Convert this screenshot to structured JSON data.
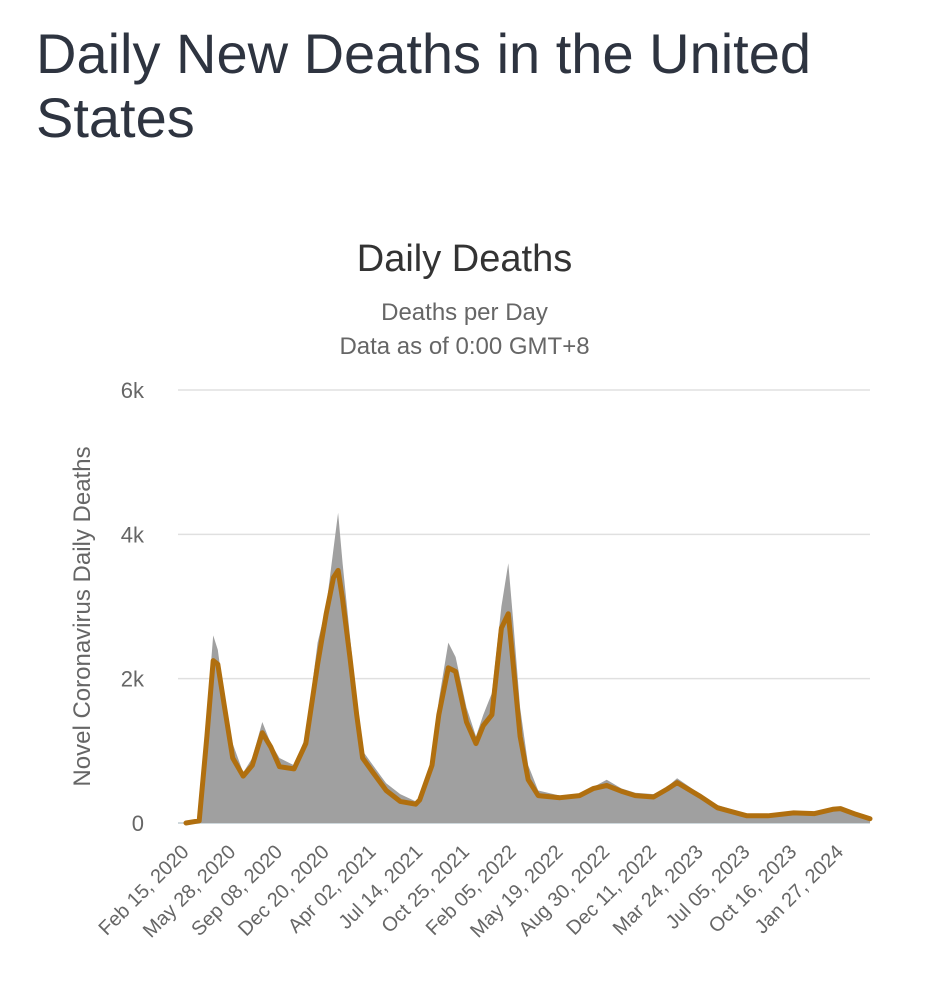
{
  "page": {
    "title": "Daily New Deaths in the United States"
  },
  "chart_data": {
    "type": "bar",
    "title": "Daily Deaths",
    "subtitle": "Deaths per Day",
    "subtitle2": "Data as of 0:00 GMT+8",
    "ylabel": "Novel Coronavirus Daily Deaths",
    "xlabel": "",
    "ylim": [
      0,
      6000
    ],
    "y_ticks": [
      {
        "value": 0,
        "label": "0"
      },
      {
        "value": 2000,
        "label": "2k"
      },
      {
        "value": 4000,
        "label": "4k"
      },
      {
        "value": 6000,
        "label": "6k"
      }
    ],
    "x_tick_labels": [
      "Feb 15, 2020",
      "May 28, 2020",
      "Sep 08, 2020",
      "Dec 20, 2020",
      "Apr 02, 2021",
      "Jul 14, 2021",
      "Oct 25, 2021",
      "Feb 05, 2022",
      "May 19, 2022",
      "Aug 30, 2022",
      "Dec 11, 2022",
      "Mar 24, 2023",
      "Jul 05, 2023",
      "Oct 16, 2023",
      "Jan 27, 2024"
    ],
    "grid": true,
    "colors": {
      "bars": "#a0a0a0",
      "moving_average": "#b06f0f",
      "grid": "#e0e0e0",
      "text": "#666666",
      "title": "#333333"
    },
    "series": [
      {
        "type": "bar",
        "x": [
          "Feb 15, 2020",
          "Mar 15, 2020",
          "Apr 01, 2020",
          "Apr 15, 2020",
          "Apr 25, 2020",
          "May 10, 2020",
          "May 28, 2020",
          "Jun 20, 2020",
          "Jul 10, 2020",
          "Aug 01, 2020",
          "Aug 20, 2020",
          "Sep 08, 2020",
          "Oct 10, 2020",
          "Nov 05, 2020",
          "Dec 01, 2020",
          "Dec 20, 2020",
          "Jan 05, 2021",
          "Jan 15, 2021",
          "Jan 25, 2021",
          "Feb 10, 2021",
          "Feb 25, 2021",
          "Mar 10, 2021",
          "Apr 02, 2021",
          "May 01, 2021",
          "Jun 01, 2021",
          "Jul 05, 2021",
          "Jul 14, 2021",
          "Aug 10, 2021",
          "Aug 25, 2021",
          "Sep 15, 2021",
          "Oct 01, 2021",
          "Oct 25, 2021",
          "Nov 15, 2021",
          "Dec 01, 2021",
          "Dec 20, 2021",
          "Jan 10, 2022",
          "Jan 25, 2022",
          "Feb 05, 2022",
          "Feb 20, 2022",
          "Mar 10, 2022",
          "Apr 01, 2022",
          "May 19, 2022",
          "Jul 01, 2022",
          "Aug 01, 2022",
          "Aug 30, 2022",
          "Oct 01, 2022",
          "Nov 01, 2022",
          "Dec 11, 2022",
          "Jan 10, 2023",
          "Feb 01, 2023",
          "Mar 24, 2023",
          "May 01, 2023",
          "Jul 05, 2023",
          "Aug 20, 2023",
          "Oct 16, 2023",
          "Dec 01, 2023",
          "Jan 10, 2024",
          "Jan 27, 2024",
          "Mar 01, 2024",
          "Apr 01, 2024"
        ],
        "values": [
          0,
          50,
          1500,
          2600,
          2400,
          1700,
          1100,
          700,
          900,
          1400,
          1100,
          900,
          800,
          1200,
          2500,
          3000,
          3800,
          4300,
          3600,
          2600,
          1700,
          1000,
          800,
          550,
          400,
          300,
          350,
          900,
          1700,
          2500,
          2300,
          1600,
          1200,
          1500,
          1800,
          3000,
          3600,
          2800,
          1600,
          800,
          450,
          380,
          400,
          500,
          600,
          480,
          420,
          400,
          500,
          620,
          400,
          250,
          120,
          110,
          160,
          140,
          220,
          230,
          150,
          90
        ]
      },
      {
        "type": "line",
        "x": [
          "Feb 15, 2020",
          "Mar 15, 2020",
          "Apr 01, 2020",
          "Apr 15, 2020",
          "Apr 25, 2020",
          "May 10, 2020",
          "May 28, 2020",
          "Jun 20, 2020",
          "Jul 10, 2020",
          "Aug 01, 2020",
          "Aug 20, 2020",
          "Sep 08, 2020",
          "Oct 10, 2020",
          "Nov 05, 2020",
          "Dec 01, 2020",
          "Dec 20, 2020",
          "Jan 05, 2021",
          "Jan 15, 2021",
          "Jan 25, 2021",
          "Feb 10, 2021",
          "Feb 25, 2021",
          "Mar 10, 2021",
          "Apr 02, 2021",
          "May 01, 2021",
          "Jun 01, 2021",
          "Jul 05, 2021",
          "Jul 14, 2021",
          "Aug 10, 2021",
          "Aug 25, 2021",
          "Sep 15, 2021",
          "Oct 01, 2021",
          "Oct 25, 2021",
          "Nov 15, 2021",
          "Dec 01, 2021",
          "Dec 20, 2021",
          "Jan 10, 2022",
          "Jan 25, 2022",
          "Feb 05, 2022",
          "Feb 20, 2022",
          "Mar 10, 2022",
          "Apr 01, 2022",
          "May 19, 2022",
          "Jul 01, 2022",
          "Aug 01, 2022",
          "Aug 30, 2022",
          "Oct 01, 2022",
          "Nov 01, 2022",
          "Dec 11, 2022",
          "Jan 10, 2023",
          "Feb 01, 2023",
          "Mar 24, 2023",
          "May 01, 2023",
          "Jul 05, 2023",
          "Aug 20, 2023",
          "Oct 16, 2023",
          "Dec 01, 2023",
          "Jan 10, 2024",
          "Jan 27, 2024",
          "Mar 01, 2024",
          "Apr 01, 2024"
        ],
        "values": [
          0,
          30,
          1200,
          2250,
          2200,
          1600,
          900,
          650,
          800,
          1250,
          1050,
          780,
          750,
          1100,
          2200,
          2900,
          3400,
          3500,
          3100,
          2300,
          1500,
          900,
          700,
          450,
          300,
          260,
          320,
          800,
          1500,
          2150,
          2100,
          1400,
          1100,
          1350,
          1500,
          2700,
          2900,
          2200,
          1200,
          600,
          380,
          350,
          380,
          480,
          520,
          440,
          380,
          360,
          470,
          560,
          370,
          210,
          100,
          100,
          140,
          130,
          190,
          200,
          120,
          60
        ]
      }
    ]
  }
}
